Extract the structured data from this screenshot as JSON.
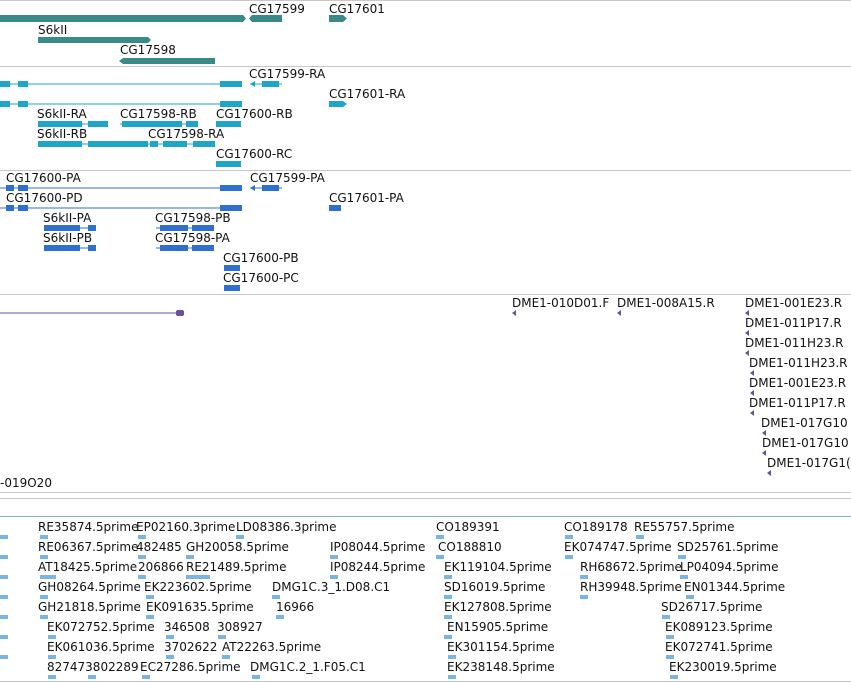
{
  "colors": {
    "gene": "#3a8a8a",
    "transcript": "#1ea5c8",
    "protein": "#2f6fd0",
    "clone": "#6a4fa0",
    "est": "#7ab4e0",
    "separator": "#c8c8c8"
  },
  "tracks": {
    "genes": {
      "labels": [
        "CG17599",
        "CG17601",
        "S6kII",
        "CG17598"
      ]
    },
    "transcripts": {
      "labels": [
        "CG17599-RA",
        "CG17601-RA",
        "S6kII-RA",
        "CG17598-RB",
        "CG17600-RB",
        "S6kII-RB",
        "CG17598-RA",
        "CG17600-RC"
      ]
    },
    "proteins": {
      "labels": [
        "CG17600-PA",
        "CG17599-PA",
        "CG17600-PD",
        "CG17601-PA",
        "S6kII-PA",
        "CG17598-PB",
        "S6kII-PB",
        "CG17598-PA",
        "CG17600-PB",
        "CG17600-PC"
      ]
    },
    "clones": {
      "labels": [
        "DME1-010D01.F",
        "DME1-008A15.R",
        "DME1-001E23.R",
        "DME1-011P17.R",
        "DME1-011H23.R",
        "DME1-011H23.R",
        "DME1-001E23.R",
        "DME1-011P17.R",
        "DME1-017G10",
        "DME1-017G10",
        "DME1-017G1(",
        "-019O20"
      ]
    },
    "ests": {
      "labels": [
        "RE35874.5prime",
        "EP02160.3prime",
        "LD08386.3prime",
        "CO189391",
        "CO189178",
        "RE55757.5prime",
        "RE06367.5prime",
        "482485",
        "GH20058.5prime",
        "IP08044.5prime",
        "CO188810",
        "EK074747.5prime",
        "SD25761.5prime",
        "AT18425.5prime",
        "206866",
        "RE21489.5prime",
        "IP08244.5prime",
        "EK119104.5prime",
        "RH68672.5prime",
        "LP04094.5prime",
        "GH08264.5prime",
        "EK223602.5prime",
        "DMG1C.3_1.D08.C1",
        "SD16019.5prime",
        "RH39948.5prime",
        "EN01344.5prime",
        "GH21818.5prime",
        "EK091635.5prime",
        "16966",
        "EK127808.5prime",
        "SD26717.5prime",
        "EK072752.5prime",
        "346508",
        "308927",
        "EN15905.5prime",
        "EK089123.5prime",
        "EK061036.5prime",
        "3702622",
        "AT22263.5prime",
        "EK301154.5prime",
        "EK072741.5prime",
        "827473802289",
        "EC27286.5prime",
        "DMG1C.2_1.F05.C1",
        "EK238148.5prime",
        "EK230019.5prime"
      ]
    }
  }
}
